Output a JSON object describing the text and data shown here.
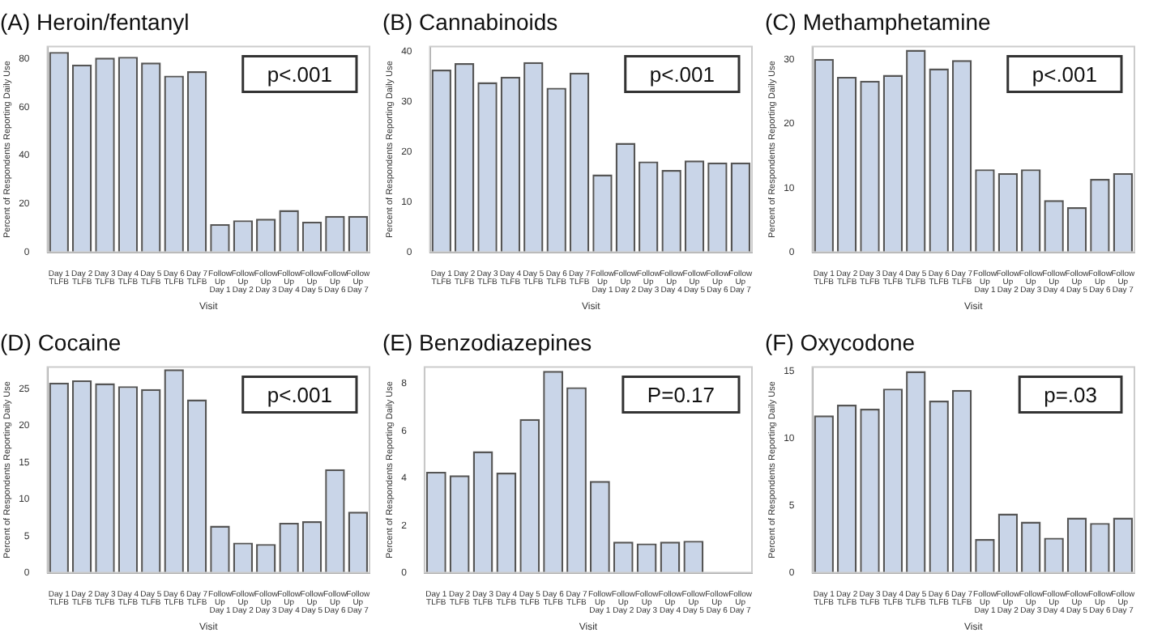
{
  "chart_data": [
    {
      "type": "bar",
      "title": "(A) Heroin/fentanyl",
      "xlabel": "Visit",
      "ylabel": "Percent of Respondents Reporting Daily Use",
      "categories": [
        "Day 1 TLFB",
        "Day 2 TLFB",
        "Day 3 TLFB",
        "Day 4 TLFB",
        "Day 5 TLFB",
        "Day 6 TLFB",
        "Day 7 TLFB",
        "Follow Up Day 1",
        "Follow Up Day 2",
        "Follow Up Day 3",
        "Follow Up Day 4",
        "Follow Up Day 5",
        "Follow Up Day 6",
        "Follow Up Day 7"
      ],
      "values": [
        82.8,
        77.6,
        80.4,
        80.8,
        78.4,
        73,
        74.8,
        11.6,
        13.2,
        13.8,
        17.4,
        12.6,
        15,
        15
      ],
      "color": "#c9d5e8",
      "ylim": [
        0,
        85
      ],
      "yticks": [
        0,
        20,
        40,
        60,
        80
      ],
      "annotations": [
        "p<.001"
      ]
    },
    {
      "type": "bar",
      "title": "(B) Cannabinoids",
      "xlabel": "Visit",
      "ylabel": "Percent of Respondents Reporting Daily Use",
      "categories": [
        "Day 1 TLFB",
        "Day 2 TLFB",
        "Day 3 TLFB",
        "Day 4 TLFB",
        "Day 5 TLFB",
        "Day 6 TLFB",
        "Day 7 TLFB",
        "Follow Up Day 1",
        "Follow Up Day 2",
        "Follow Up Day 3",
        "Follow Up Day 4",
        "Follow Up Day 5",
        "Follow Up Day 6",
        "Follow Up Day 7"
      ],
      "values": [
        36.4,
        37.7,
        33.9,
        35,
        37.9,
        32.8,
        35.8,
        15.5,
        21.8,
        18.1,
        16.4,
        18.3,
        17.9,
        17.9
      ],
      "color": "#c9d5e8",
      "ylim": [
        0,
        41
      ],
      "yticks": [
        0,
        10,
        20,
        30,
        40
      ],
      "annotations": [
        "p<.001"
      ]
    },
    {
      "type": "bar",
      "title": "(C) Methamphetamine",
      "xlabel": "Visit",
      "ylabel": "Percent of Respondents Reporting Daily Use",
      "categories": [
        "Day 1 TLFB",
        "Day 2 TLFB",
        "Day 3 TLFB",
        "Day 4 TLFB",
        "Day 5 TLFB",
        "Day 6 TLFB",
        "Day 7 TLFB",
        "Follow Up Day 1",
        "Follow Up Day 2",
        "Follow Up Day 3",
        "Follow Up Day 4",
        "Follow Up Day 5",
        "Follow Up Day 6",
        "Follow Up Day 7"
      ],
      "values": [
        30.1,
        27.3,
        26.7,
        27.6,
        31.5,
        28.6,
        29.9,
        12.9,
        12.3,
        12.9,
        8.1,
        7,
        11.4,
        12.3
      ],
      "color": "#c9d5e8",
      "ylim": [
        0,
        32
      ],
      "yticks": [
        0,
        10,
        20,
        30
      ],
      "annotations": [
        "p<.001"
      ]
    },
    {
      "type": "bar",
      "title": "(D) Cocaine",
      "xlabel": "Visit",
      "ylabel": "Percent of Respondents Reporting Daily Use",
      "categories": [
        "Day 1 TLFB",
        "Day 2 TLFB",
        "Day 3 TLFB",
        "Day 4 TLFB",
        "Day 5 TLFB",
        "Day 6 TLFB",
        "Day 7 TLFB",
        "Follow Up Day 1",
        "Follow Up Day 2",
        "Follow Up Day 3",
        "Follow Up Day 4",
        "Follow Up Day 5",
        "Follow Up Day 6",
        "Follow Up Day 7"
      ],
      "values": [
        25.9,
        26.2,
        25.8,
        25.4,
        25,
        27.7,
        23.6,
        6.4,
        4.1,
        3.9,
        6.8,
        7,
        14.1,
        8.3
      ],
      "color": "#c9d5e8",
      "ylim": [
        0,
        28
      ],
      "yticks": [
        0,
        5,
        10,
        15,
        20,
        25
      ],
      "annotations": [
        "p<.001"
      ]
    },
    {
      "type": "bar",
      "title": "(E) Benzodiazepines",
      "xlabel": "Visit",
      "ylabel": "Percent of Respondents Reporting Daily Use",
      "categories": [
        "Day 1 TLFB",
        "Day 2 TLFB",
        "Day 3 TLFB",
        "Day 4 TLFB",
        "Day 5 TLFB",
        "Day 6 TLFB",
        "Day 7 TLFB",
        "Follow Up Day 1",
        "Follow Up Day 2",
        "Follow Up Day 3",
        "Follow Up Day 4",
        "Follow Up Day 5",
        "Follow Up Day 6",
        "Follow Up Day 7"
      ],
      "values": [
        4.27,
        4.12,
        5.14,
        4.23,
        6.5,
        8.54,
        7.85,
        3.88,
        1.31,
        1.24,
        1.31,
        1.35,
        0,
        0
      ],
      "color": "#c9d5e8",
      "ylim": [
        0,
        8.7
      ],
      "yticks": [
        0,
        2,
        4,
        6,
        8
      ],
      "annotations": [
        "P=0.17"
      ]
    },
    {
      "type": "bar",
      "title": "(F) Oxycodone",
      "xlabel": "Visit",
      "ylabel": "Percent of Respondents Reporting Daily Use",
      "categories": [
        "Day 1 TLFB",
        "Day 2 TLFB",
        "Day 3 TLFB",
        "Day 4 TLFB",
        "Day 5 TLFB",
        "Day 6 TLFB",
        "Day 7 TLFB",
        "Follow Up Day 1",
        "Follow Up Day 2",
        "Follow Up Day 3",
        "Follow Up Day 4",
        "Follow Up Day 5",
        "Follow Up Day 6",
        "Follow Up Day 7"
      ],
      "values": [
        11.7,
        12.5,
        12.2,
        13.7,
        15,
        12.8,
        13.6,
        2.5,
        4.4,
        3.8,
        2.6,
        4.1,
        3.7,
        4.1
      ],
      "color": "#c9d5e8",
      "ylim": [
        0,
        15.3
      ],
      "yticks": [
        0,
        5,
        10,
        15
      ],
      "annotations": [
        "p=.03"
      ]
    }
  ]
}
